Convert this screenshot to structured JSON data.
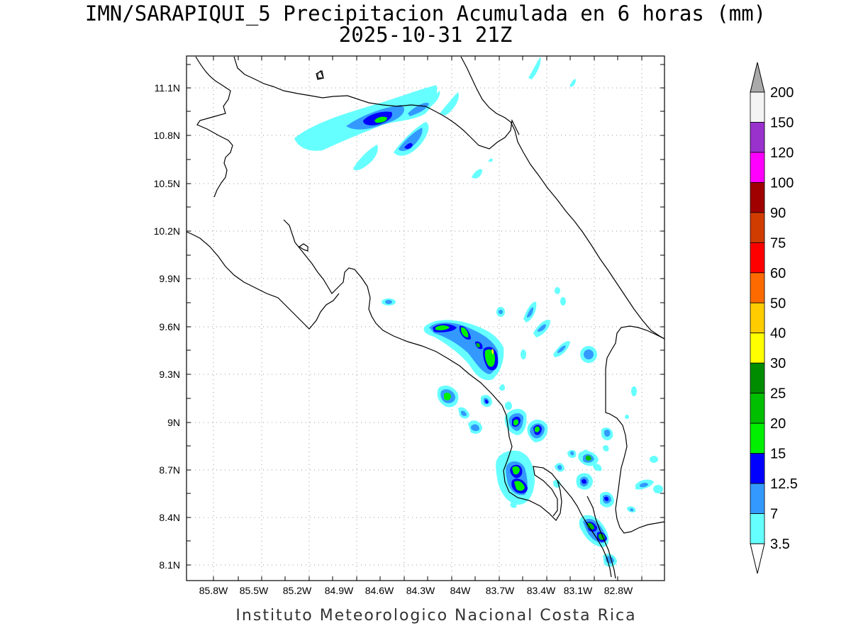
{
  "title": {
    "line1": "IMN/SARAPIQUI_5 Precipitacion Acumulada en 6 horas (mm)",
    "line2": "2025-10-31 21Z"
  },
  "footer": "Instituto Meteorologico Nacional Costa Rica",
  "axes": {
    "lon_ticks": [
      "85.8W",
      "85.5W",
      "85.2W",
      "84.9W",
      "84.6W",
      "84.3W",
      "84W",
      "83.7W",
      "83.4W",
      "83.1W",
      "82.8W"
    ],
    "lat_ticks": [
      "11.1N",
      "10.8N",
      "10.5N",
      "10.2N",
      "9.9N",
      "9.6N",
      "9.3N",
      "9N",
      "8.7N",
      "8.4N",
      "8.1N"
    ]
  },
  "colorbar": {
    "labels": [
      "200",
      "150",
      "120",
      "100",
      "90",
      "75",
      "60",
      "50",
      "40",
      "30",
      "25",
      "20",
      "15",
      "12.5",
      "7",
      "3.5"
    ],
    "colors": [
      "#f4f4f4",
      "#9932cc",
      "#ff00ff",
      "#a00000",
      "#d03c00",
      "#ff0000",
      "#ff6a00",
      "#ffcc00",
      "#ffff00",
      "#008c00",
      "#00be00",
      "#00f000",
      "#0000ff",
      "#3399ff",
      "#66ffff"
    ],
    "over_color": "#aaaaaa"
  },
  "legend_colors": {
    "c35": "#66ffff",
    "c7": "#3399ff",
    "c125": "#0000ff",
    "c15": "#00f000",
    "c20": "#00be00",
    "c30": "#ffff00"
  }
}
